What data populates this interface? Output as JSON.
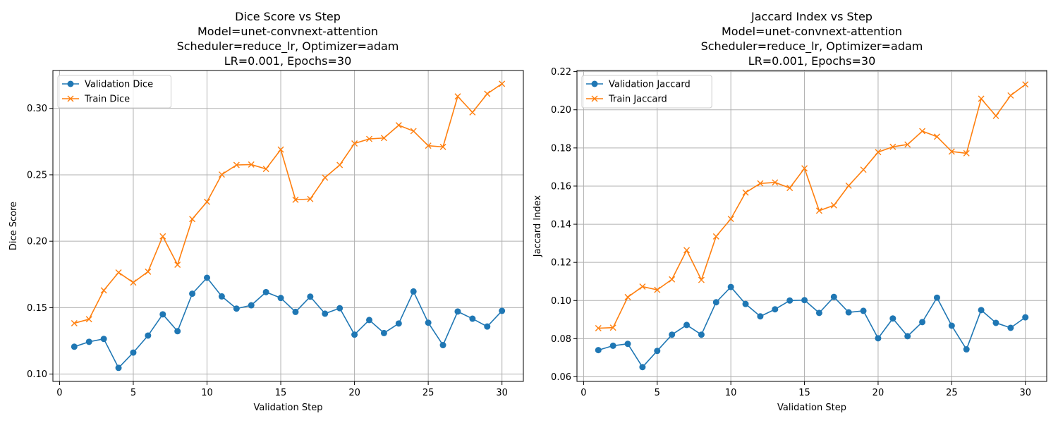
{
  "colors": {
    "validation": "#1f77b4",
    "train": "#ff7f0e"
  },
  "chart_data": [
    {
      "type": "line",
      "title_lines": [
        "Dice Score vs Step",
        "Model=unet-convnext-attention",
        "Scheduler=reduce_lr, Optimizer=adam",
        "LR=0.001, Epochs=30"
      ],
      "xlabel": "Validation Step",
      "ylabel": "Dice Score",
      "xlim": [
        -0.45,
        31.45
      ],
      "ylim": [
        0.0945,
        0.3285
      ],
      "xticks": [
        0,
        5,
        10,
        15,
        20,
        25,
        30
      ],
      "xtick_labels": [
        "0",
        "5",
        "10",
        "15",
        "20",
        "25",
        "30"
      ],
      "yticks": [
        0.1,
        0.15,
        0.2,
        0.25,
        0.3
      ],
      "ytick_labels": [
        "0.10",
        "0.15",
        "0.20",
        "0.25",
        "0.30"
      ],
      "grid": true,
      "legend": "top-left",
      "x": [
        1,
        2,
        3,
        4,
        5,
        6,
        7,
        8,
        9,
        10,
        11,
        12,
        13,
        14,
        15,
        16,
        17,
        18,
        19,
        20,
        21,
        22,
        23,
        24,
        25,
        26,
        27,
        28,
        29,
        30
      ],
      "series": [
        {
          "name": "Validation Dice",
          "marker": "circle",
          "values": [
            0.1206,
            0.1243,
            0.1265,
            0.1047,
            0.1162,
            0.129,
            0.145,
            0.1323,
            0.1605,
            0.1725,
            0.1585,
            0.1493,
            0.1518,
            0.1617,
            0.1573,
            0.1468,
            0.1583,
            0.1455,
            0.1496,
            0.1297,
            0.1407,
            0.1309,
            0.1381,
            0.1622,
            0.1387,
            0.1218,
            0.1471,
            0.1417,
            0.1358,
            0.1476
          ]
        },
        {
          "name": "Train Dice",
          "marker": "x",
          "values": [
            0.1383,
            0.1413,
            0.163,
            0.1765,
            0.1689,
            0.1771,
            0.2037,
            0.1823,
            0.2167,
            0.2297,
            0.2502,
            0.2574,
            0.2577,
            0.2544,
            0.269,
            0.2312,
            0.2318,
            0.2479,
            0.2574,
            0.2736,
            0.277,
            0.2777,
            0.2873,
            0.2829,
            0.2719,
            0.271,
            0.309,
            0.297,
            0.311,
            0.3185
          ]
        }
      ]
    },
    {
      "type": "line",
      "title_lines": [
        "Jaccard Index vs Step",
        "Model=unet-convnext-attention",
        "Scheduler=reduce_lr, Optimizer=adam",
        "LR=0.001, Epochs=30"
      ],
      "xlabel": "Validation Step",
      "ylabel": "Jaccard Index",
      "xlim": [
        -0.45,
        31.45
      ],
      "ylim": [
        0.0576,
        0.2206
      ],
      "xticks": [
        0,
        5,
        10,
        15,
        20,
        25,
        30
      ],
      "xtick_labels": [
        "0",
        "5",
        "10",
        "15",
        "20",
        "25",
        "30"
      ],
      "yticks": [
        0.06,
        0.08,
        0.1,
        0.12,
        0.14,
        0.16,
        0.18,
        0.2,
        0.22
      ],
      "ytick_labels": [
        "0.06",
        "0.08",
        "0.10",
        "0.12",
        "0.14",
        "0.16",
        "0.18",
        "0.20",
        "0.22"
      ],
      "grid": true,
      "legend": "top-left",
      "x": [
        1,
        2,
        3,
        4,
        5,
        6,
        7,
        8,
        9,
        10,
        11,
        12,
        13,
        14,
        15,
        16,
        17,
        18,
        19,
        20,
        21,
        22,
        23,
        24,
        25,
        26,
        27,
        28,
        29,
        30
      ],
      "series": [
        {
          "name": "Validation Jaccard",
          "marker": "circle",
          "values": [
            0.074,
            0.0763,
            0.0773,
            0.0651,
            0.0736,
            0.0821,
            0.0872,
            0.0821,
            0.0991,
            0.1071,
            0.0982,
            0.0917,
            0.0954,
            0.1,
            0.1002,
            0.0935,
            0.1019,
            0.0938,
            0.0946,
            0.0802,
            0.0906,
            0.0813,
            0.0887,
            0.1015,
            0.0868,
            0.0744,
            0.095,
            0.0883,
            0.0857,
            0.0912
          ]
        },
        {
          "name": "Train Jaccard",
          "marker": "x",
          "values": [
            0.0855,
            0.0858,
            0.1018,
            0.1073,
            0.1056,
            0.1111,
            0.1264,
            0.1108,
            0.1336,
            0.1428,
            0.1566,
            0.1614,
            0.1619,
            0.159,
            0.1693,
            0.1471,
            0.1499,
            0.1602,
            0.1686,
            0.1778,
            0.1806,
            0.1818,
            0.1888,
            0.1859,
            0.1781,
            0.1772,
            0.2058,
            0.1968,
            0.2075,
            0.2133
          ]
        }
      ]
    }
  ]
}
